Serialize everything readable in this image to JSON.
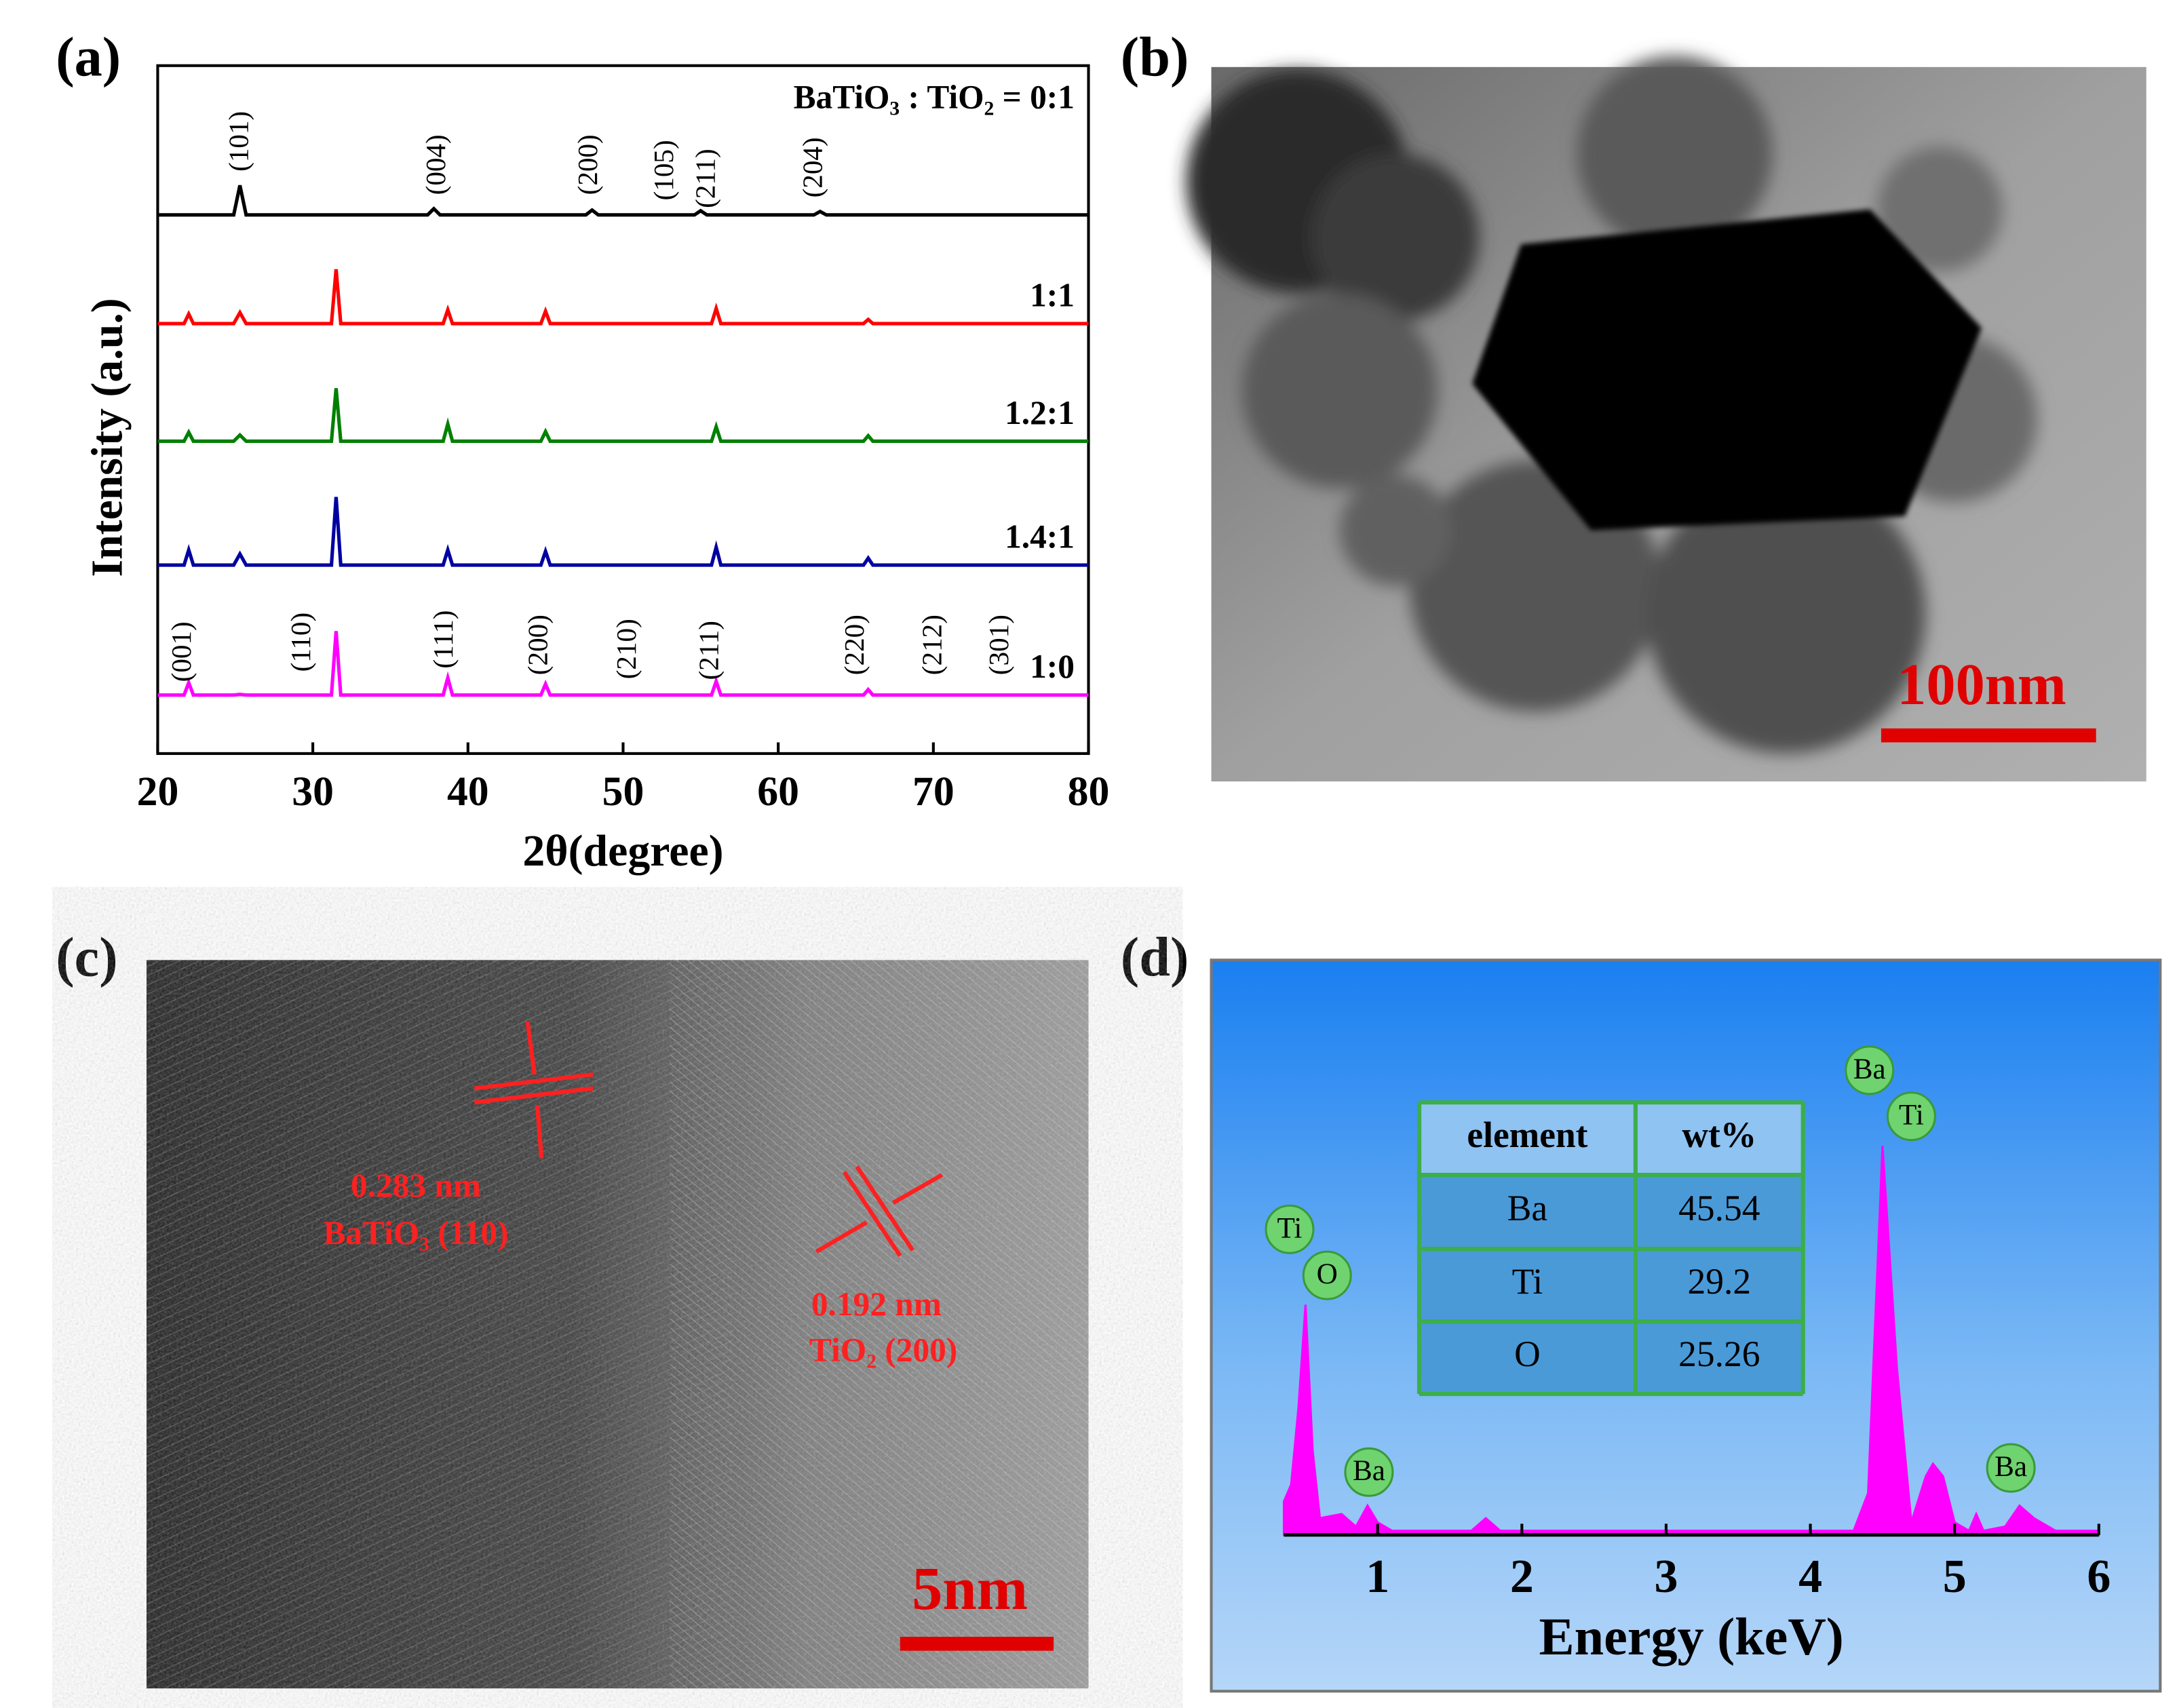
{
  "panel_labels": [
    "(a)",
    "(b)",
    "(c)",
    "(d)"
  ],
  "chart_data": [
    {
      "type": "line",
      "x_label": "2θ(degree)",
      "y_label": "Intensity (a.u.)",
      "xlim": [
        20,
        80
      ],
      "xticks": [
        20,
        30,
        40,
        50,
        60,
        70,
        80
      ],
      "ylim": [
        0,
        100
      ],
      "series": [
        {
          "name": "BaTiO₃ : TiO₂ = 0:1",
          "color": "#000000",
          "x": [
            20,
            24.9,
            25.3,
            25.7,
            37.4,
            37.8,
            38.2,
            47.6,
            48,
            48.4,
            54.6,
            55,
            55.4,
            62.3,
            62.7,
            63.1,
            80
          ],
          "values": [
            78.3,
            78.3,
            82.6,
            78.3,
            78.3,
            79.2,
            78.3,
            78.3,
            79,
            78.3,
            78.3,
            78.9,
            78.3,
            78.3,
            78.8,
            78.3,
            78.3
          ]
        },
        {
          "name": "1:1",
          "color": "#ff0000",
          "x": [
            20,
            21.7,
            22,
            22.3,
            24.9,
            25.3,
            25.7,
            31.2,
            31.5,
            31.8,
            38.4,
            38.7,
            39,
            44.7,
            45,
            45.3,
            55.7,
            56,
            56.3,
            65.5,
            65.8,
            66.1,
            80
          ],
          "values": [
            62.5,
            62.5,
            63.9,
            62.5,
            62.5,
            64.1,
            62.5,
            62.5,
            70.4,
            62.5,
            62.5,
            64.5,
            62.5,
            62.5,
            64.3,
            62.5,
            62.5,
            64.7,
            62.5,
            62.5,
            63.1,
            62.5,
            62.5
          ]
        },
        {
          "name": "1.2:1",
          "color": "#008000",
          "x": [
            20,
            21.7,
            22,
            22.3,
            24.9,
            25.3,
            25.7,
            31.2,
            31.5,
            31.8,
            38.4,
            38.7,
            39,
            44.7,
            45,
            45.3,
            55.7,
            56,
            56.3,
            65.5,
            65.8,
            66.1,
            80
          ],
          "values": [
            45.4,
            45.4,
            46.7,
            45.4,
            45.4,
            46.3,
            45.4,
            45.4,
            53.1,
            45.4,
            45.4,
            47.9,
            45.4,
            45.4,
            46.8,
            45.4,
            45.4,
            47.5,
            45.4,
            45.4,
            46.2,
            45.4,
            45.4
          ]
        },
        {
          "name": "1.4:1",
          "color": "#0000a0",
          "x": [
            20,
            21.7,
            22,
            22.3,
            24.9,
            25.3,
            25.7,
            31.2,
            31.5,
            31.8,
            38.4,
            38.7,
            39,
            44.7,
            45,
            45.3,
            55.7,
            56,
            56.3,
            65.5,
            65.8,
            66.1,
            80
          ],
          "values": [
            27.4,
            27.4,
            29.6,
            27.4,
            27.4,
            29,
            27.4,
            27.4,
            37.3,
            27.4,
            27.4,
            29.6,
            27.4,
            27.4,
            29.4,
            27.4,
            27.4,
            30,
            27.4,
            27.4,
            28.4,
            27.4,
            27.4
          ]
        },
        {
          "name": "1:0",
          "color": "#ff00ff",
          "x": [
            20,
            21.7,
            22,
            22.3,
            24.9,
            25.3,
            25.7,
            31.2,
            31.5,
            31.8,
            38.4,
            38.7,
            39,
            44.7,
            45,
            45.3,
            55.7,
            56,
            56.3,
            65.5,
            65.8,
            66.1,
            80
          ],
          "values": [
            8.5,
            8.5,
            10.3,
            8.5,
            8.5,
            8.6,
            8.5,
            8.5,
            17.8,
            8.5,
            8.5,
            11,
            8.5,
            8.5,
            10.1,
            8.5,
            8.5,
            10.5,
            8.5,
            8.5,
            9.3,
            8.5,
            8.5
          ]
        }
      ],
      "annotations": [
        {
          "text": "(101)",
          "x": 25.4,
          "y": 89
        },
        {
          "text": "(004)",
          "x": 38.1,
          "y": 85.6
        },
        {
          "text": "(200)",
          "x": 47.9,
          "y": 85.6
        },
        {
          "text": "(105)",
          "x": 52.8,
          "y": 84.8
        },
        {
          "text": "(211)",
          "x": 55.5,
          "y": 83.6
        },
        {
          "text": "(204)",
          "x": 62.4,
          "y": 85.2
        },
        {
          "text": "(001)",
          "x": 21.7,
          "y": 14.8
        },
        {
          "text": "(110)",
          "x": 29.4,
          "y": 16.2
        },
        {
          "text": "(111)",
          "x": 38.6,
          "y": 16.6
        },
        {
          "text": "(200)",
          "x": 44.7,
          "y": 15.8
        },
        {
          "text": "(210)",
          "x": 50.4,
          "y": 15.2
        },
        {
          "text": "(211)",
          "x": 55.7,
          "y": 15
        },
        {
          "text": "(220)",
          "x": 65.1,
          "y": 15.8
        },
        {
          "text": "(212)",
          "x": 70.1,
          "y": 15.8
        },
        {
          "text": "(301)",
          "x": 74.4,
          "y": 15.8
        }
      ]
    },
    {
      "type": "area",
      "x_label": "Energy (keV)",
      "xlim": [
        0.35,
        6
      ],
      "xticks": [
        1,
        2,
        3,
        4,
        5,
        6
      ],
      "ylim": [
        0,
        112
      ],
      "series": [
        {
          "color": "#ff00ff",
          "x": [
            0.35,
            0.4,
            0.45,
            0.5,
            0.55,
            0.6,
            0.75,
            0.85,
            0.93,
            1.0,
            1.1,
            1.65,
            1.75,
            1.85,
            2.5,
            4.3,
            4.4,
            4.5,
            4.6,
            4.7,
            4.8,
            4.85,
            4.92,
            5.0,
            5.1,
            5.15,
            5.2,
            5.35,
            5.45,
            5.55,
            5.7,
            6
          ],
          "values": [
            8,
            12,
            30,
            55,
            20,
            4,
            5,
            2,
            7,
            3,
            1,
            1,
            4,
            1,
            1,
            1,
            10,
            93,
            40,
            3,
            14,
            17,
            14,
            3,
            1,
            5,
            1,
            2,
            7,
            4,
            1,
            1
          ]
        }
      ],
      "annotations": [
        {
          "text": "Ti",
          "x": 0.39,
          "y": 73
        },
        {
          "text": "O",
          "x": 0.65,
          "y": 62
        },
        {
          "text": "Ba",
          "x": 0.94,
          "y": 15
        },
        {
          "text": "Ba",
          "x": 4.41,
          "y": 111
        },
        {
          "text": "Ti",
          "x": 4.7,
          "y": 100
        },
        {
          "text": "Ba",
          "x": 5.39,
          "y": 16
        }
      ]
    }
  ],
  "tem_image": {
    "scale_bar": "100nm"
  },
  "hrtem_image": {
    "labels": [
      "0.283 nm",
      "BaTiO₃ (110)",
      "0.192 nm",
      "TiO₂ (200)"
    ],
    "scale_bar": "5nm"
  },
  "eds_table": {
    "header": [
      "element",
      "wt%"
    ],
    "rows": [
      [
        "Ba",
        45.54
      ],
      [
        "Ti",
        29.2
      ],
      [
        "O",
        25.26
      ]
    ]
  }
}
